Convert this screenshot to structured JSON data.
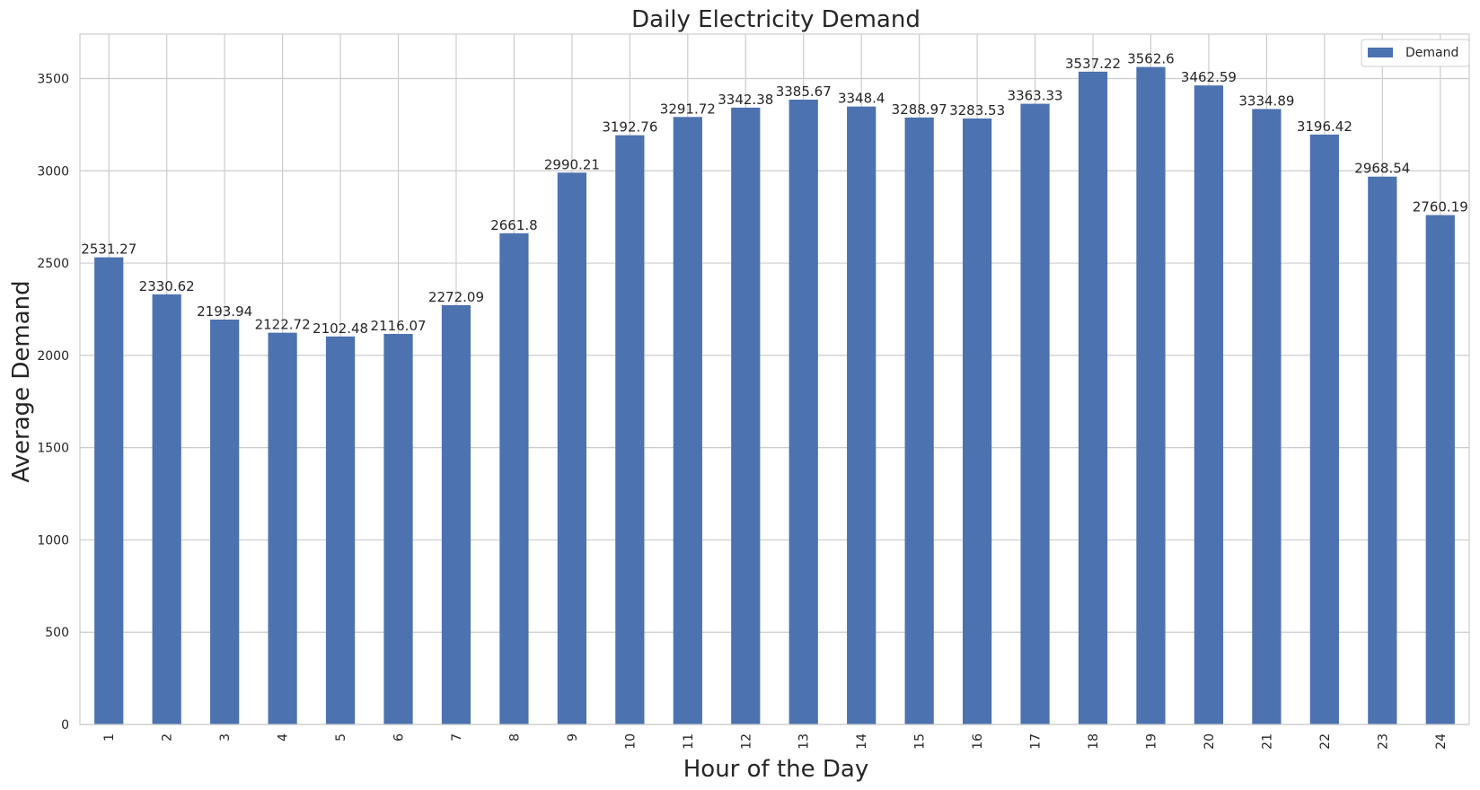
{
  "chart_data": {
    "type": "bar",
    "title": "Daily Electricity Demand",
    "xlabel": "Hour of the Day",
    "ylabel": "Average Demand",
    "categories": [
      "1",
      "2",
      "3",
      "4",
      "5",
      "6",
      "7",
      "8",
      "9",
      "10",
      "11",
      "12",
      "13",
      "14",
      "15",
      "16",
      "17",
      "18",
      "19",
      "20",
      "21",
      "22",
      "23",
      "24"
    ],
    "series": [
      {
        "name": "Demand",
        "values": [
          2531.27,
          2330.62,
          2193.94,
          2122.72,
          2102.48,
          2116.07,
          2272.09,
          2661.8,
          2990.21,
          3192.76,
          3291.72,
          3342.38,
          3385.67,
          3348.4,
          3288.97,
          3283.53,
          3363.33,
          3537.22,
          3562.6,
          3462.59,
          3334.89,
          3196.42,
          2968.54,
          2760.19
        ],
        "data_labels": [
          "2531.27",
          "2330.62",
          "2193.94",
          "2122.72",
          "2102.48",
          "2116.07",
          "2272.09",
          "2661.8",
          "2990.21",
          "3192.76",
          "3291.72",
          "3342.38",
          "3385.67",
          "3348.4",
          "3288.97",
          "3283.53",
          "3363.33",
          "3537.22",
          "3562.6",
          "3462.59",
          "3334.89",
          "3196.42",
          "2968.54",
          "2760.19"
        ],
        "color": "#4c72b0"
      }
    ],
    "ylim": [
      0,
      3740.73
    ],
    "yticks": [
      0,
      500,
      1000,
      1500,
      2000,
      2500,
      3000,
      3500
    ],
    "ytick_labels": [
      "0",
      "500",
      "1000",
      "1500",
      "2000",
      "2500",
      "3000",
      "3500"
    ],
    "grid": true,
    "legend_position": "top-right",
    "colors": {
      "grid": "#cccccc",
      "spine": "#cccccc",
      "bar": "#4c72b0",
      "text": "#262626"
    }
  }
}
